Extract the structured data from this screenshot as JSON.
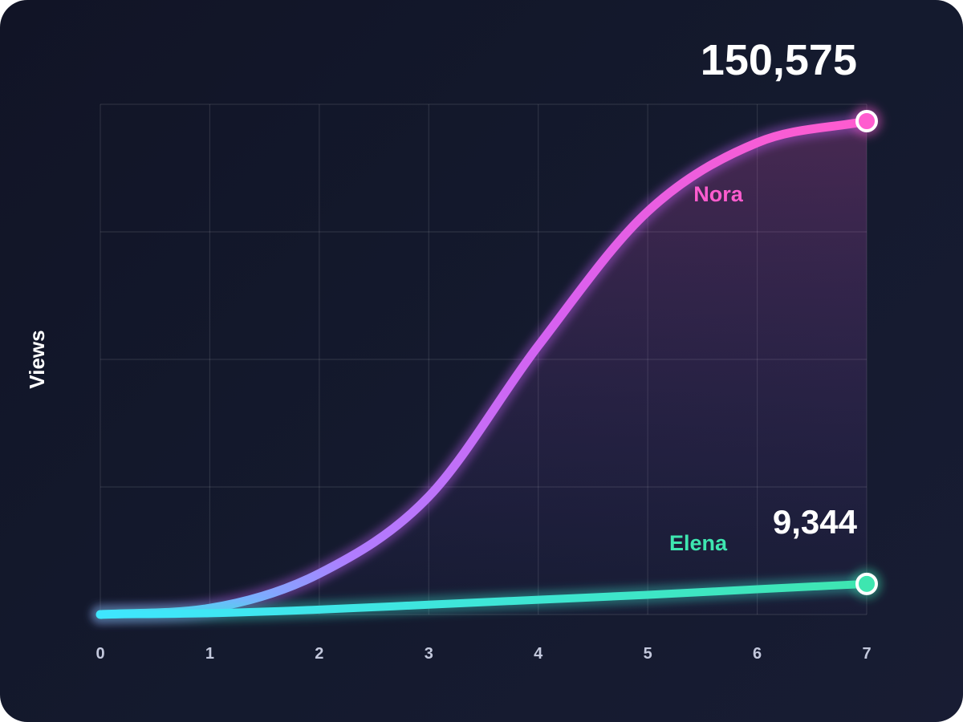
{
  "chart_data": {
    "type": "line",
    "title": "",
    "xlabel": "",
    "ylabel": "Views",
    "x": [
      0,
      1,
      2,
      3,
      4,
      5,
      6,
      7
    ],
    "xlim": [
      0,
      7
    ],
    "ylim": [
      0,
      150575
    ],
    "grid": true,
    "series": [
      {
        "name": "Nora",
        "color": "#ff5ccf",
        "start_color": "#3fe6ff",
        "values": [
          0,
          1900,
          12500,
          36000,
          82000,
          123000,
          144000,
          150575
        ],
        "end_label": "150,575"
      },
      {
        "name": "Elena",
        "color": "#3ee6b0",
        "start_color": "#3fe6ff",
        "values": [
          0,
          400,
          1500,
          3000,
          4500,
          6000,
          7700,
          9344
        ],
        "end_label": "9,344"
      }
    ]
  }
}
